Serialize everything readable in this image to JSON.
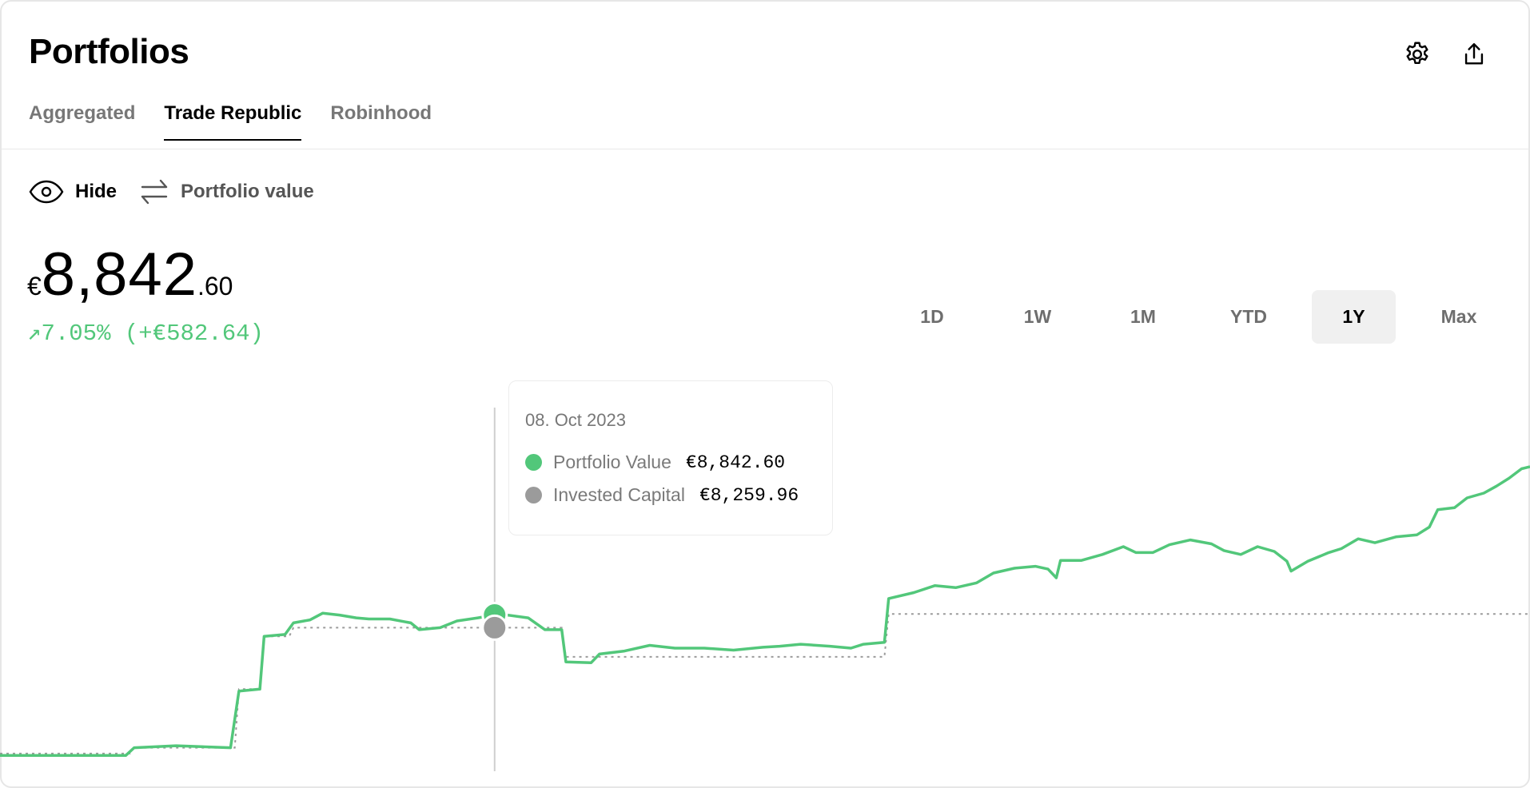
{
  "header": {
    "title": "Portfolios",
    "settings_icon": "gear-icon",
    "share_icon": "share-icon"
  },
  "tabs": [
    {
      "label": "Aggregated",
      "active": false
    },
    {
      "label": "Trade Republic",
      "active": true
    },
    {
      "label": "Robinhood",
      "active": false
    }
  ],
  "toggles": {
    "hide_label": "Hide",
    "hide_icon": "eye-icon",
    "mode_label": "Portfolio value",
    "mode_icon": "swap-arrows-icon"
  },
  "summary": {
    "currency": "€",
    "integer": "8,842",
    "decimals": ".60",
    "change_arrow": "↗",
    "change_text": "7.05% (+€582.64)"
  },
  "ranges": [
    {
      "label": "1D",
      "active": false
    },
    {
      "label": "1W",
      "active": false
    },
    {
      "label": "1M",
      "active": false
    },
    {
      "label": "YTD",
      "active": false
    },
    {
      "label": "1Y",
      "active": true
    },
    {
      "label": "Max",
      "active": false
    }
  ],
  "tooltip": {
    "date": "08. Oct 2023",
    "rows": [
      {
        "label": "Portfolio Value",
        "value": "€8,842.60",
        "color": "#52c77a"
      },
      {
        "label": "Invested Capital",
        "value": "€8,259.96",
        "color": "#9b9b9b"
      }
    ]
  },
  "colors": {
    "accent": "#52c77a",
    "invested": "#9b9b9b"
  },
  "chart_data": {
    "type": "line",
    "title": "",
    "xlabel": "",
    "ylabel": "",
    "grid": false,
    "xlim": [
      "2023-06-12",
      "2024-06-11"
    ],
    "ylim": [
      900,
      20200
    ],
    "hover_date": "2023-10-08",
    "series": [
      {
        "name": "Portfolio Value",
        "style": "solid",
        "color": "#52c77a",
        "points": [
          [
            "2023-06-12",
            2392
          ],
          [
            "2023-07-12",
            2392
          ],
          [
            "2023-07-14",
            2750
          ],
          [
            "2023-07-24",
            2840
          ],
          [
            "2023-08-06",
            2750
          ],
          [
            "2023-08-08",
            5350
          ],
          [
            "2023-08-13",
            5440
          ],
          [
            "2023-08-14",
            7860
          ],
          [
            "2023-08-19",
            7950
          ],
          [
            "2023-08-21",
            8480
          ],
          [
            "2023-08-25",
            8620
          ],
          [
            "2023-08-28",
            8930
          ],
          [
            "2023-09-01",
            8840
          ],
          [
            "2023-09-05",
            8710
          ],
          [
            "2023-09-08",
            8660
          ],
          [
            "2023-09-13",
            8660
          ],
          [
            "2023-09-18",
            8480
          ],
          [
            "2023-09-20",
            8170
          ],
          [
            "2023-09-25",
            8260
          ],
          [
            "2023-09-29",
            8570
          ],
          [
            "2023-10-04",
            8710
          ],
          [
            "2023-10-08",
            8842.6
          ],
          [
            "2023-10-11",
            8840
          ],
          [
            "2023-10-16",
            8710
          ],
          [
            "2023-10-20",
            8170
          ],
          [
            "2023-10-24",
            8170
          ],
          [
            "2023-10-25",
            6690
          ],
          [
            "2023-10-31",
            6650
          ],
          [
            "2023-11-02",
            7050
          ],
          [
            "2023-11-08",
            7190
          ],
          [
            "2023-11-14",
            7450
          ],
          [
            "2023-11-20",
            7320
          ],
          [
            "2023-11-27",
            7320
          ],
          [
            "2023-12-04",
            7230
          ],
          [
            "2023-12-11",
            7360
          ],
          [
            "2023-12-15",
            7410
          ],
          [
            "2023-12-20",
            7500
          ],
          [
            "2023-12-27",
            7410
          ],
          [
            "2024-01-01",
            7320
          ],
          [
            "2024-01-04",
            7500
          ],
          [
            "2024-01-09",
            7590
          ],
          [
            "2024-01-10",
            9600
          ],
          [
            "2024-01-16",
            9870
          ],
          [
            "2024-01-21",
            10190
          ],
          [
            "2024-01-26",
            10100
          ],
          [
            "2024-01-31",
            10320
          ],
          [
            "2024-02-04",
            10770
          ],
          [
            "2024-02-09",
            10990
          ],
          [
            "2024-02-14",
            11080
          ],
          [
            "2024-02-17",
            10950
          ],
          [
            "2024-02-19",
            10550
          ],
          [
            "2024-02-20",
            11350
          ],
          [
            "2024-02-25",
            11350
          ],
          [
            "2024-03-01",
            11620
          ],
          [
            "2024-03-06",
            11980
          ],
          [
            "2024-03-09",
            11710
          ],
          [
            "2024-03-13",
            11710
          ],
          [
            "2024-03-17",
            12070
          ],
          [
            "2024-03-22",
            12290
          ],
          [
            "2024-03-27",
            12110
          ],
          [
            "2024-03-30",
            11800
          ],
          [
            "2024-04-03",
            11620
          ],
          [
            "2024-04-07",
            11980
          ],
          [
            "2024-04-11",
            11760
          ],
          [
            "2024-04-14",
            11310
          ],
          [
            "2024-04-15",
            10860
          ],
          [
            "2024-04-19",
            11310
          ],
          [
            "2024-04-24",
            11710
          ],
          [
            "2024-04-27",
            11890
          ],
          [
            "2024-05-01",
            12340
          ],
          [
            "2024-05-05",
            12160
          ],
          [
            "2024-05-10",
            12430
          ],
          [
            "2024-05-15",
            12520
          ],
          [
            "2024-05-18",
            12880
          ],
          [
            "2024-05-20",
            13680
          ],
          [
            "2024-05-24",
            13770
          ],
          [
            "2024-05-27",
            14220
          ],
          [
            "2024-05-31",
            14440
          ],
          [
            "2024-06-03",
            14760
          ],
          [
            "2024-06-06",
            15120
          ],
          [
            "2024-06-09",
            15560
          ],
          [
            "2024-06-11",
            15650
          ]
        ]
      },
      {
        "name": "Invested Capital",
        "style": "dotted",
        "color": "#9b9b9b",
        "points": [
          [
            "2023-06-12",
            2480
          ],
          [
            "2023-07-13",
            2480
          ],
          [
            "2023-07-14",
            2750
          ],
          [
            "2023-08-07",
            2750
          ],
          [
            "2023-08-08",
            5440
          ],
          [
            "2023-08-13",
            5440
          ],
          [
            "2023-08-14",
            7860
          ],
          [
            "2023-08-20",
            7860
          ],
          [
            "2023-08-21",
            8259.96
          ],
          [
            "2023-10-24",
            8259.96
          ],
          [
            "2023-10-25",
            6920
          ],
          [
            "2024-01-09",
            6920
          ],
          [
            "2024-01-10",
            8890
          ],
          [
            "2024-06-11",
            8890
          ]
        ]
      }
    ]
  }
}
